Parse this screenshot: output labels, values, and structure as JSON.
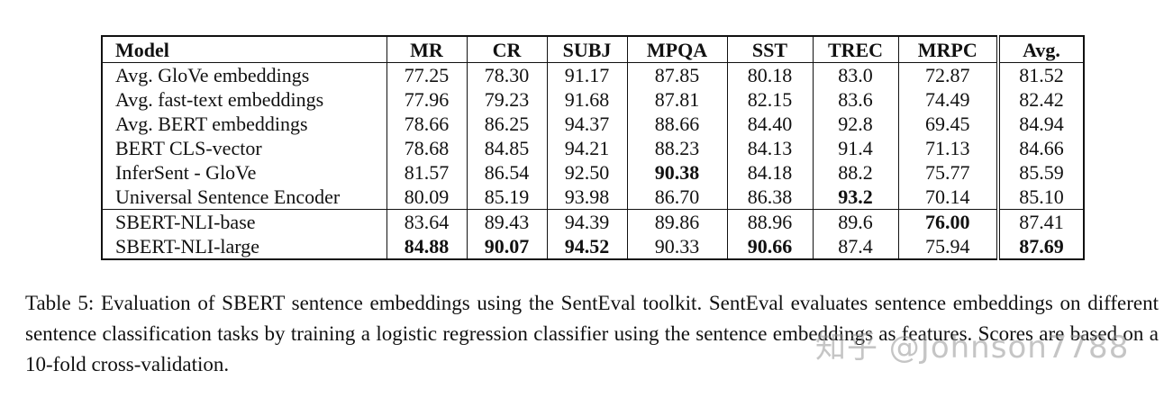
{
  "table": {
    "columns": [
      "Model",
      "MR",
      "CR",
      "SUBJ",
      "MPQA",
      "SST",
      "TREC",
      "MRPC",
      "Avg."
    ],
    "rows": [
      {
        "model": "Avg. GloVe embeddings",
        "values": [
          "77.25",
          "78.30",
          "91.17",
          "87.85",
          "80.18",
          "83.0",
          "72.87",
          "81.52"
        ],
        "bold": [],
        "group_start": false
      },
      {
        "model": "Avg. fast-text embeddings",
        "values": [
          "77.96",
          "79.23",
          "91.68",
          "87.81",
          "82.15",
          "83.6",
          "74.49",
          "82.42"
        ],
        "bold": [],
        "group_start": false
      },
      {
        "model": "Avg. BERT embeddings",
        "values": [
          "78.66",
          "86.25",
          "94.37",
          "88.66",
          "84.40",
          "92.8",
          "69.45",
          "84.94"
        ],
        "bold": [],
        "group_start": false
      },
      {
        "model": "BERT CLS-vector",
        "values": [
          "78.68",
          "84.85",
          "94.21",
          "88.23",
          "84.13",
          "91.4",
          "71.13",
          "84.66"
        ],
        "bold": [],
        "group_start": false
      },
      {
        "model": "InferSent - GloVe",
        "values": [
          "81.57",
          "86.54",
          "92.50",
          "90.38",
          "84.18",
          "88.2",
          "75.77",
          "85.59"
        ],
        "bold": [
          3
        ],
        "group_start": false
      },
      {
        "model": "Universal Sentence Encoder",
        "values": [
          "80.09",
          "85.19",
          "93.98",
          "86.70",
          "86.38",
          "93.2",
          "70.14",
          "85.10"
        ],
        "bold": [
          5
        ],
        "group_start": false
      },
      {
        "model": "SBERT-NLI-base",
        "values": [
          "83.64",
          "89.43",
          "94.39",
          "89.86",
          "88.96",
          "89.6",
          "76.00",
          "87.41"
        ],
        "bold": [
          6
        ],
        "group_start": true
      },
      {
        "model": "SBERT-NLI-large",
        "values": [
          "84.88",
          "90.07",
          "94.52",
          "90.33",
          "90.66",
          "87.4",
          "75.94",
          "87.69"
        ],
        "bold": [
          0,
          1,
          2,
          4,
          7
        ],
        "group_start": false
      }
    ]
  },
  "caption": "Table 5: Evaluation of SBERT sentence embeddings using the SentEval toolkit. SentEval evaluates sentence embeddings on different sentence classification tasks by training a logistic regression classifier using the sentence embeddings as features. Scores are based on a 10-fold cross-validation.",
  "watermark": "知乎 @Johnson7788"
}
